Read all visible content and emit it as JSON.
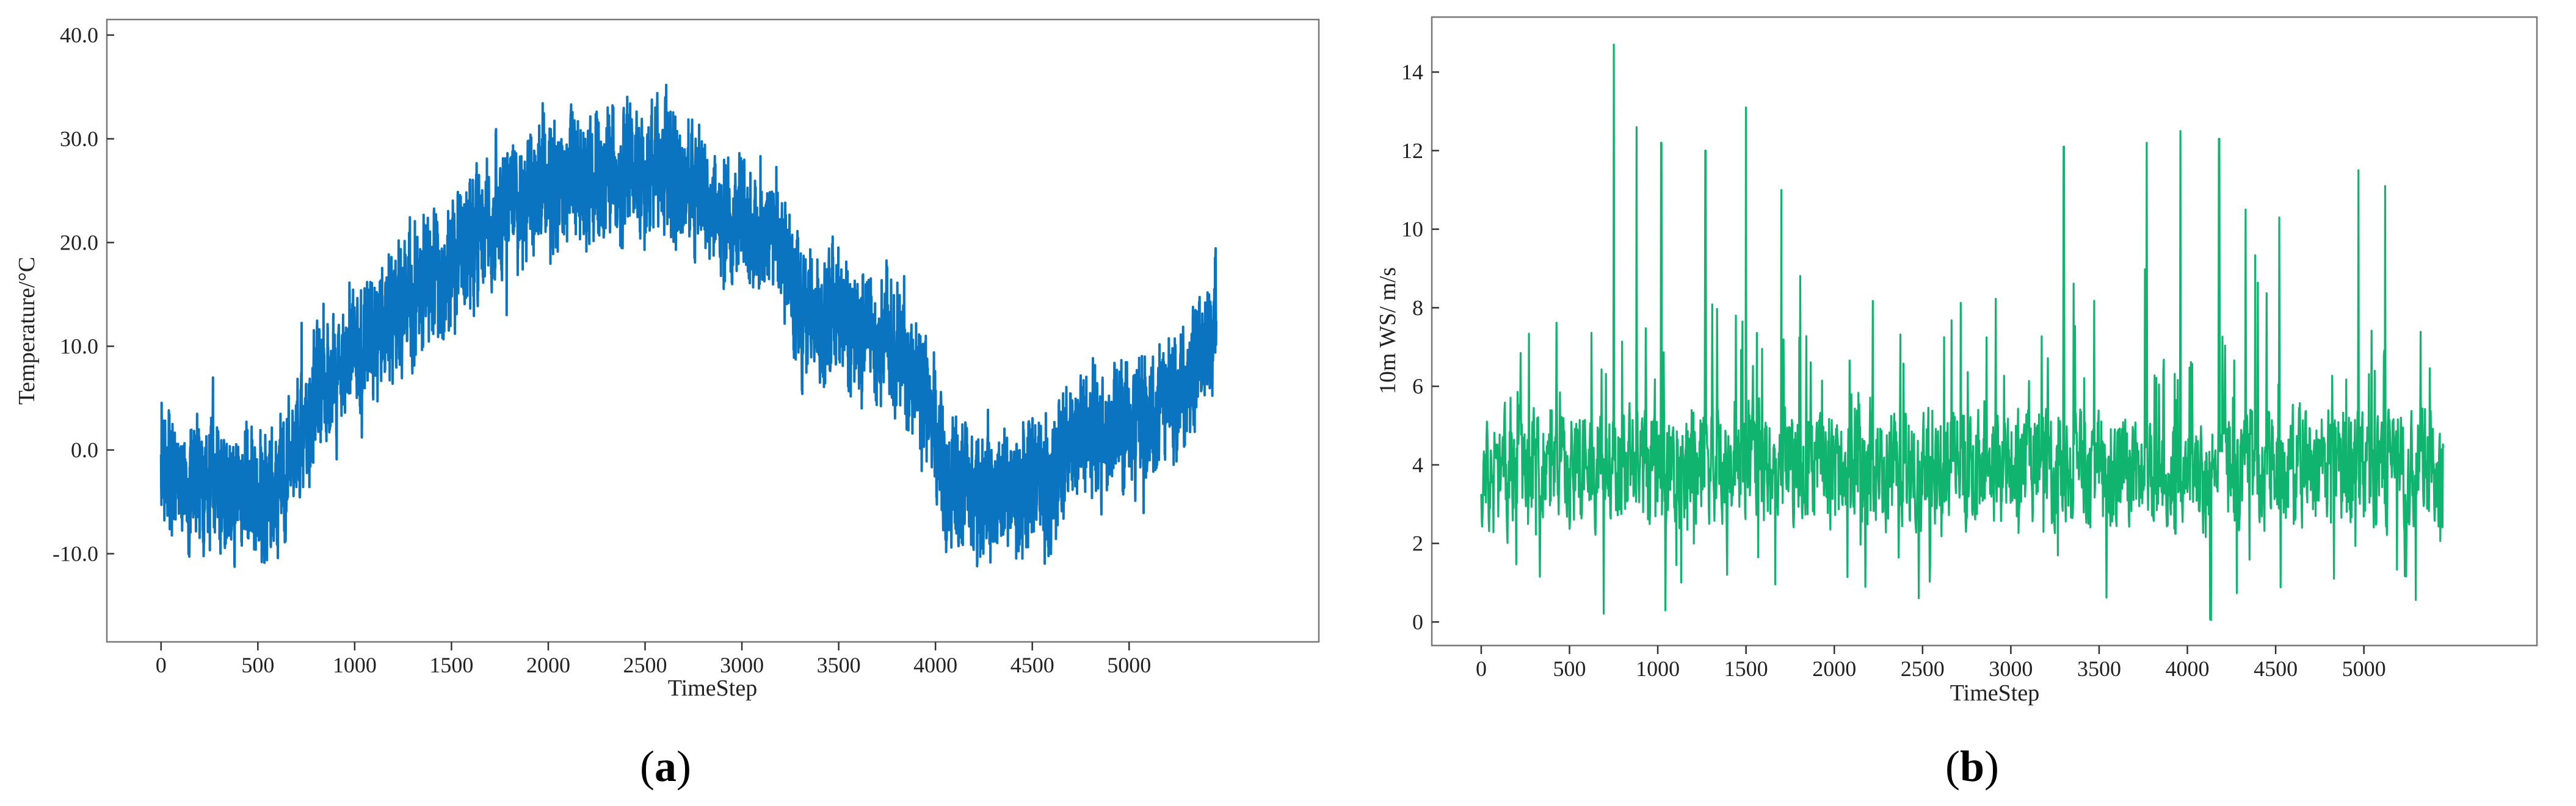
{
  "chart_data": [
    {
      "type": "line",
      "panel": "a",
      "panel_label": "a",
      "xlabel": "TimeStep",
      "ylabel": "Temperature/°C",
      "xlim": [
        -280,
        5980
      ],
      "ylim": [
        -18.5,
        41.5
      ],
      "xticks": [
        0,
        500,
        1000,
        1500,
        2000,
        2500,
        3000,
        3500,
        4000,
        4500,
        5000
      ],
      "yticks": [
        -10.0,
        0.0,
        10.0,
        20.0,
        30.0,
        40.0
      ],
      "ytick_format": "fixed1",
      "color": "#0a74c0",
      "line_width": 4,
      "series": {
        "x_start": 0,
        "x_end": 5450,
        "points": 5451,
        "x": [
          0,
          200,
          400,
          600,
          800,
          1000,
          1200,
          1400,
          1600,
          1800,
          2000,
          2200,
          2400,
          2600,
          2800,
          3000,
          3200,
          3300,
          3500,
          3800,
          3950,
          4050,
          4300,
          4600,
          4700,
          5000,
          5200,
          5400,
          5450
        ],
        "y_mean": [
          -2,
          -3,
          -4,
          -4,
          5,
          9,
          13,
          16,
          20,
          24,
          25,
          26,
          27,
          27,
          24,
          22,
          20,
          13,
          12,
          10,
          6,
          -3,
          -4,
          -4,
          1,
          2,
          4,
          9,
          13
        ],
        "noise_amplitude": 4.2,
        "min_value": -16.5,
        "max_value": 39.2,
        "seed": 7
      }
    },
    {
      "type": "line",
      "panel": "b",
      "panel_label": "b",
      "xlabel": "TimeStep",
      "ylabel": "10m WS/ m/s",
      "xlim": [
        -280,
        5980
      ],
      "ylim": [
        -0.6,
        15.4
      ],
      "xticks": [
        0,
        500,
        1000,
        1500,
        2000,
        2500,
        3000,
        3500,
        4000,
        4500,
        5000
      ],
      "yticks": [
        0,
        2,
        4,
        6,
        8,
        10,
        12,
        14
      ],
      "ytick_format": "int",
      "color": "#10b46e",
      "line_width": 3.2,
      "series": {
        "x_start": 0,
        "x_end": 5450,
        "points": 2200,
        "mean_level": 3.9,
        "noise_amplitude": 1.9,
        "min_value": 0.05,
        "max_value": 14.7,
        "peaks": [
          [
            750,
            14.7
          ],
          [
            880,
            12.6
          ],
          [
            1020,
            12.2
          ],
          [
            1270,
            12.0
          ],
          [
            1500,
            13.1
          ],
          [
            1700,
            11.0
          ],
          [
            3300,
            12.1
          ],
          [
            3770,
            12.2
          ],
          [
            3960,
            12.5
          ],
          [
            4180,
            12.3
          ],
          [
            4330,
            10.5
          ],
          [
            4520,
            10.3
          ],
          [
            4970,
            11.5
          ],
          [
            5120,
            11.1
          ]
        ],
        "seed": 11
      }
    }
  ]
}
